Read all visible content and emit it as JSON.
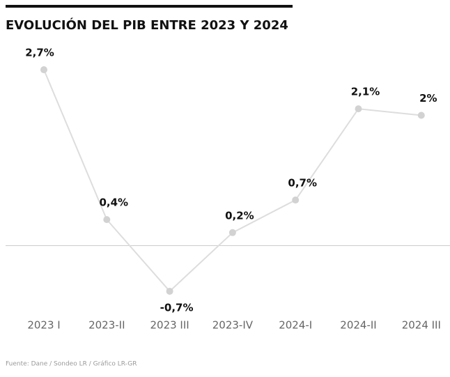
{
  "chart_data": {
    "type": "line",
    "title": "EVOLUCIÓN DEL PIB ENTRE 2023 Y 2024",
    "categories": [
      "2023 I",
      "2023-II",
      "2023 III",
      "2023-IV",
      "2024-I",
      "2024-II",
      "2024 III"
    ],
    "series": [
      {
        "name": "PIB",
        "color": "#dddddd",
        "values": [
          2.7,
          0.4,
          -0.7,
          0.2,
          0.7,
          2.1,
          2.0
        ],
        "value_labels": [
          "2,7%",
          "0,4%",
          "-0,7%",
          "0,2%",
          "0,7%",
          "2,1%",
          "2%"
        ]
      }
    ],
    "ylim": [
      -1,
      3
    ],
    "source": "Fuente: Dane / Sondeo LR / Gráfico LR-GR"
  }
}
